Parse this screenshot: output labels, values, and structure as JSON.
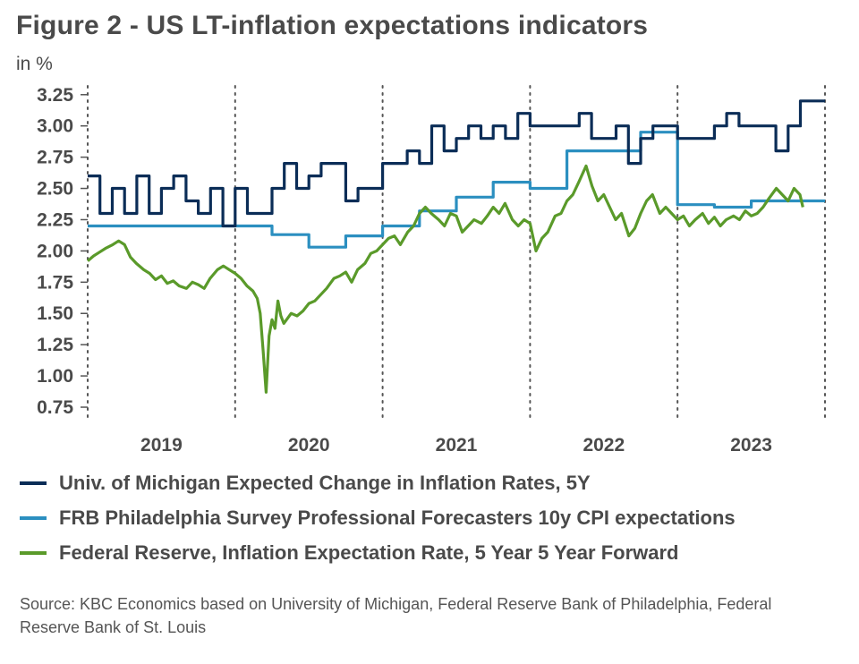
{
  "title": "Figure 2 - US LT-inflation expectations indicators",
  "unit_label": "in %",
  "source": "Source: KBC Economics based on University of Michigan, Federal Reserve Bank of Philadelphia, Federal Reserve Bank of St. Louis",
  "chart_data": {
    "type": "line",
    "title": "Figure 2 - US LT-inflation expectations indicators",
    "ylabel": "in %",
    "xlabel": "",
    "ylim": [
      0.75,
      3.25
    ],
    "xlim": [
      2019.0,
      2024.0
    ],
    "yticks": [
      0.75,
      1.0,
      1.25,
      1.5,
      1.75,
      2.0,
      2.25,
      2.5,
      2.75,
      3.0,
      3.25
    ],
    "ytick_labels": [
      "0.75",
      "1.00",
      "1.25",
      "1.50",
      "1.75",
      "2.00",
      "2.25",
      "2.50",
      "2.75",
      "3.00",
      "3.25"
    ],
    "xtick_labels": [
      "2019",
      "2020",
      "2021",
      "2022",
      "2023"
    ],
    "grid": "vertical dotted lines at year boundaries",
    "legend_position": "bottom",
    "series": [
      {
        "name": "Univ. of Michigan Expected Change in Inflation Rates, 5Y",
        "color": "#0b2d57",
        "style": "step",
        "x": [
          2019.0,
          2019.083,
          2019.167,
          2019.25,
          2019.333,
          2019.417,
          2019.5,
          2019.583,
          2019.667,
          2019.75,
          2019.833,
          2019.917,
          2020.0,
          2020.083,
          2020.167,
          2020.25,
          2020.333,
          2020.417,
          2020.5,
          2020.583,
          2020.667,
          2020.75,
          2020.833,
          2020.917,
          2021.0,
          2021.083,
          2021.167,
          2021.25,
          2021.333,
          2021.417,
          2021.5,
          2021.583,
          2021.667,
          2021.75,
          2021.833,
          2021.917,
          2022.0,
          2022.083,
          2022.167,
          2022.25,
          2022.333,
          2022.417,
          2022.5,
          2022.583,
          2022.667,
          2022.75,
          2022.833,
          2022.917,
          2023.0,
          2023.083,
          2023.167,
          2023.25,
          2023.333,
          2023.417,
          2023.5,
          2023.583,
          2023.667,
          2023.75,
          2023.833,
          2023.917
        ],
        "values": [
          2.6,
          2.3,
          2.5,
          2.3,
          2.6,
          2.3,
          2.5,
          2.6,
          2.4,
          2.3,
          2.5,
          2.2,
          2.5,
          2.3,
          2.3,
          2.5,
          2.7,
          2.5,
          2.6,
          2.7,
          2.7,
          2.4,
          2.5,
          2.5,
          2.7,
          2.7,
          2.8,
          2.7,
          3.0,
          2.8,
          2.9,
          3.0,
          2.9,
          3.0,
          2.9,
          3.1,
          3.0,
          3.0,
          3.0,
          3.0,
          3.1,
          2.9,
          2.9,
          3.0,
          2.7,
          2.9,
          3.0,
          3.0,
          2.9,
          2.9,
          2.9,
          3.0,
          3.1,
          3.0,
          3.0,
          3.0,
          2.8,
          3.0,
          3.2,
          3.2
        ]
      },
      {
        "name": "FRB Philadelphia Survey Professional Forecasters 10y CPI expectations",
        "color": "#2b8fc0",
        "style": "step",
        "x": [
          2019.0,
          2019.25,
          2019.5,
          2019.75,
          2020.0,
          2020.25,
          2020.5,
          2020.75,
          2021.0,
          2021.25,
          2021.5,
          2021.75,
          2022.0,
          2022.25,
          2022.5,
          2022.75,
          2023.0,
          2023.25,
          2023.5,
          2023.75,
          2024.0
        ],
        "values": [
          2.2,
          2.2,
          2.2,
          2.2,
          2.2,
          2.13,
          2.03,
          2.12,
          2.2,
          2.32,
          2.43,
          2.55,
          2.5,
          2.8,
          2.8,
          2.95,
          2.37,
          2.35,
          2.4,
          2.4,
          2.4
        ]
      },
      {
        "name": "Federal Reserve, Inflation Expectation Rate, 5 Year 5 Year Forward",
        "color": "#5a9a2a",
        "style": "line",
        "x": [
          2019.0,
          2019.04,
          2019.08,
          2019.12,
          2019.17,
          2019.21,
          2019.25,
          2019.29,
          2019.33,
          2019.38,
          2019.42,
          2019.46,
          2019.5,
          2019.54,
          2019.58,
          2019.62,
          2019.67,
          2019.71,
          2019.75,
          2019.79,
          2019.83,
          2019.88,
          2019.92,
          2019.96,
          2020.0,
          2020.04,
          2020.08,
          2020.12,
          2020.15,
          2020.17,
          2020.19,
          2020.21,
          2020.23,
          2020.25,
          2020.27,
          2020.29,
          2020.31,
          2020.33,
          2020.38,
          2020.42,
          2020.46,
          2020.5,
          2020.54,
          2020.58,
          2020.62,
          2020.67,
          2020.71,
          2020.75,
          2020.79,
          2020.83,
          2020.88,
          2020.92,
          2020.96,
          2021.0,
          2021.04,
          2021.08,
          2021.12,
          2021.17,
          2021.21,
          2021.25,
          2021.29,
          2021.33,
          2021.38,
          2021.42,
          2021.46,
          2021.5,
          2021.54,
          2021.58,
          2021.62,
          2021.67,
          2021.71,
          2021.75,
          2021.79,
          2021.83,
          2021.88,
          2021.92,
          2021.96,
          2022.0,
          2022.04,
          2022.08,
          2022.12,
          2022.17,
          2022.21,
          2022.25,
          2022.29,
          2022.33,
          2022.38,
          2022.42,
          2022.46,
          2022.5,
          2022.54,
          2022.58,
          2022.62,
          2022.67,
          2022.71,
          2022.75,
          2022.79,
          2022.83,
          2022.88,
          2022.92,
          2022.96,
          2023.0,
          2023.04,
          2023.08,
          2023.12,
          2023.17,
          2023.21,
          2023.25,
          2023.29,
          2023.33,
          2023.38,
          2023.42,
          2023.46,
          2023.5,
          2023.54,
          2023.58,
          2023.62,
          2023.67,
          2023.71,
          2023.75,
          2023.79,
          2023.83,
          2023.85
        ],
        "values": [
          1.92,
          1.96,
          1.99,
          2.02,
          2.05,
          2.08,
          2.05,
          1.95,
          1.9,
          1.85,
          1.82,
          1.77,
          1.8,
          1.74,
          1.76,
          1.72,
          1.7,
          1.75,
          1.73,
          1.7,
          1.78,
          1.85,
          1.88,
          1.85,
          1.82,
          1.78,
          1.72,
          1.68,
          1.62,
          1.5,
          1.2,
          0.87,
          1.32,
          1.45,
          1.38,
          1.6,
          1.48,
          1.42,
          1.5,
          1.48,
          1.52,
          1.58,
          1.6,
          1.65,
          1.7,
          1.78,
          1.8,
          1.83,
          1.75,
          1.85,
          1.9,
          1.98,
          2.0,
          2.05,
          2.1,
          2.12,
          2.05,
          2.15,
          2.2,
          2.3,
          2.35,
          2.3,
          2.25,
          2.2,
          2.3,
          2.28,
          2.15,
          2.2,
          2.25,
          2.22,
          2.28,
          2.35,
          2.3,
          2.38,
          2.25,
          2.2,
          2.25,
          2.22,
          2.0,
          2.1,
          2.15,
          2.28,
          2.3,
          2.4,
          2.45,
          2.55,
          2.68,
          2.52,
          2.4,
          2.45,
          2.35,
          2.25,
          2.3,
          2.12,
          2.18,
          2.3,
          2.4,
          2.45,
          2.3,
          2.35,
          2.3,
          2.25,
          2.28,
          2.2,
          2.25,
          2.3,
          2.22,
          2.27,
          2.2,
          2.25,
          2.28,
          2.25,
          2.32,
          2.28,
          2.3,
          2.35,
          2.42,
          2.5,
          2.45,
          2.4,
          2.5,
          2.45,
          2.35
        ]
      }
    ]
  }
}
